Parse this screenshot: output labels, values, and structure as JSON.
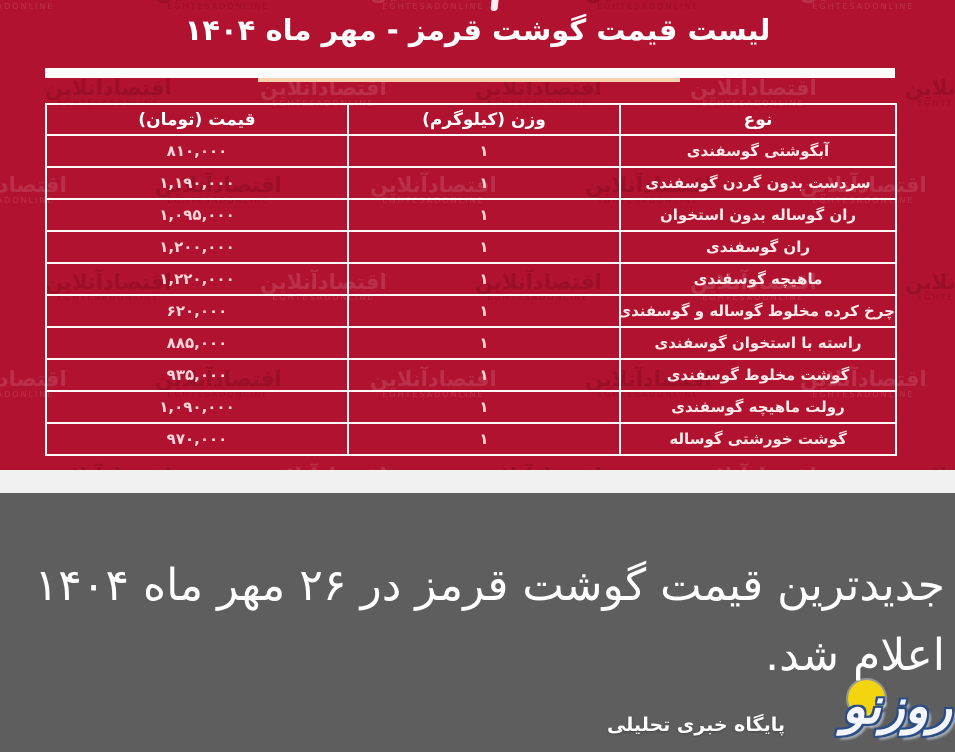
{
  "image": {
    "title": "لیست قیمت گوشت قرمز - مهر ماه ۱۴۰۴",
    "watermark": {
      "fa": "اقتصادآنلاین",
      "en": "EGHTESADONLINE"
    }
  },
  "table": {
    "headers": [
      "نوع",
      "وزن (کیلوگرم)",
      "قیمت (تومان)"
    ],
    "rows": [
      {
        "type": "آبگوشتی گوسفندی",
        "weight": "۱",
        "price": "۸۱۰,۰۰۰"
      },
      {
        "type": "سردست بدون گردن گوسفندی",
        "weight": "۱",
        "price": "۱,۱۹۰,۰۰۰"
      },
      {
        "type": "ران گوساله بدون استخوان",
        "weight": "۱",
        "price": "۱,۰۹۵,۰۰۰"
      },
      {
        "type": "ران گوسفندی",
        "weight": "۱",
        "price": "۱,۲۰۰,۰۰۰"
      },
      {
        "type": "ماهیچه گوسفندی",
        "weight": "۱",
        "price": "۱,۲۲۰,۰۰۰"
      },
      {
        "type": "چرخ کرده مخلوط گوساله و گوسفندی",
        "weight": "۱",
        "price": "۶۲۰,۰۰۰"
      },
      {
        "type": "راسته با استخوان گوسفندی",
        "weight": "۱",
        "price": "۸۸۵,۰۰۰"
      },
      {
        "type": "گوشت مخلوط گوسفندی",
        "weight": "۱",
        "price": "۹۳۵,۰۰۰"
      },
      {
        "type": "رولت ماهیچه گوسفندی",
        "weight": "۱",
        "price": "۱,۰۹۰,۰۰۰"
      },
      {
        "type": "گوشت خورشتی گوساله",
        "weight": "۱",
        "price": "۹۷۰,۰۰۰"
      }
    ]
  },
  "chart_data": {
    "type": "table",
    "title": "لیست قیمت گوشت قرمز - مهر ماه ۱۴۰۴",
    "columns": [
      "نوع",
      "وزن (کیلوگرم)",
      "قیمت (تومان)"
    ],
    "rows": [
      [
        "آبگوشتی گوسفندی",
        1,
        810000
      ],
      [
        "سردست بدون گردن گوسفندی",
        1,
        1190000
      ],
      [
        "ران گوساله بدون استخوان",
        1,
        1095000
      ],
      [
        "ران گوسفندی",
        1,
        1200000
      ],
      [
        "ماهیچه گوسفندی",
        1,
        1220000
      ],
      [
        "چرخ کرده مخلوط گوساله و گوسفندی",
        1,
        620000
      ],
      [
        "راسته با استخوان گوسفندی",
        1,
        885000
      ],
      [
        "گوشت مخلوط گوسفندی",
        1,
        935000
      ],
      [
        "رولت ماهیچه گوسفندی",
        1,
        1090000
      ],
      [
        "گوشت خورشتی گوساله",
        1,
        970000
      ]
    ]
  },
  "caption": {
    "line1": "جدیدترین قیمت گوشت قرمز در ۲۶ مهر ماه ۱۴۰۴",
    "line2": "اعلام شد."
  },
  "logo": {
    "name": "روزنو",
    "tagline": "پایگاه خبری تحلیلی"
  },
  "colors": {
    "red_background": "#b1122f",
    "table_border": "#fdf6f6",
    "price_text": "#ffd6d8",
    "divider_white": "#fcfbfb",
    "divider_accent": "#f7cfad",
    "strip": "#f2f1f1",
    "gray_background": "#5e5e5e",
    "caption_text": "#ffffff",
    "logo_yellow": "#f2d411",
    "logo_navy": "#2b4d86"
  }
}
